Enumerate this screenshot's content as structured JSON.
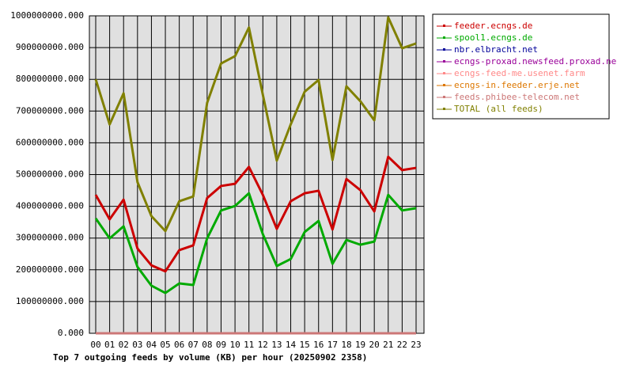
{
  "chart_data": {
    "type": "line",
    "title": "Top 7 outgoing feeds by volume (KB) per hour (20250902 2358)",
    "categories": [
      "00",
      "01",
      "02",
      "03",
      "04",
      "05",
      "06",
      "07",
      "08",
      "09",
      "10",
      "11",
      "12",
      "13",
      "14",
      "15",
      "16",
      "17",
      "18",
      "19",
      "20",
      "21",
      "22",
      "23"
    ],
    "ylim": [
      0,
      1000000000
    ],
    "yticks": [
      {
        "value": 0,
        "label": "0.000"
      },
      {
        "value": 100000000,
        "label": "100000000.000"
      },
      {
        "value": 200000000,
        "label": "200000000.000"
      },
      {
        "value": 300000000,
        "label": "300000000.000"
      },
      {
        "value": 400000000,
        "label": "400000000.000"
      },
      {
        "value": 500000000,
        "label": "500000000.000"
      },
      {
        "value": 600000000,
        "label": "600000000.000"
      },
      {
        "value": 700000000,
        "label": "700000000.000"
      },
      {
        "value": 800000000,
        "label": "800000000.000"
      },
      {
        "value": 900000000,
        "label": "900000000.000"
      },
      {
        "value": 1000000000,
        "label": "1000000000.000"
      }
    ],
    "grid": true,
    "legend": "right",
    "series": [
      {
        "name": "feeder.ecngs.de",
        "color": "#cc0000",
        "values": [
          436000000,
          359000000,
          421000000,
          267000000,
          214000000,
          195000000,
          262000000,
          277000000,
          426000000,
          464000000,
          471000000,
          524000000,
          436000000,
          329000000,
          416000000,
          441000000,
          449000000,
          327000000,
          486000000,
          451000000,
          384000000,
          556000000,
          514000000,
          521000000
        ]
      },
      {
        "name": "spool1.ecngs.de",
        "color": "#00aa00",
        "values": [
          362000000,
          299000000,
          337000000,
          209000000,
          150000000,
          127000000,
          157000000,
          152000000,
          299000000,
          387000000,
          401000000,
          441000000,
          312000000,
          212000000,
          234000000,
          319000000,
          354000000,
          219000000,
          294000000,
          279000000,
          289000000,
          436000000,
          387000000,
          394000000
        ]
      },
      {
        "name": "nbr.elbracht.net",
        "color": "#000099",
        "values": [
          0,
          0,
          0,
          0,
          0,
          0,
          0,
          0,
          0,
          0,
          0,
          0,
          0,
          0,
          0,
          0,
          0,
          0,
          0,
          0,
          0,
          0,
          0,
          0
        ]
      },
      {
        "name": "ecngs-proxad.newsfeed.proxad.net",
        "color": "#990099",
        "values": [
          0,
          0,
          0,
          0,
          0,
          0,
          0,
          0,
          0,
          0,
          0,
          0,
          0,
          0,
          0,
          0,
          0,
          0,
          0,
          0,
          0,
          0,
          0,
          0
        ]
      },
      {
        "name": "ecngs-feed-me.usenet.farm",
        "color": "#ff8888",
        "values": [
          0,
          0,
          0,
          0,
          0,
          0,
          0,
          0,
          0,
          0,
          0,
          0,
          0,
          0,
          0,
          0,
          0,
          0,
          0,
          0,
          0,
          0,
          0,
          0
        ]
      },
      {
        "name": "ecngs-in.feeder.erje.net",
        "color": "#dd7700",
        "values": [
          0,
          0,
          0,
          0,
          0,
          0,
          0,
          0,
          0,
          0,
          0,
          0,
          0,
          0,
          0,
          0,
          0,
          0,
          0,
          0,
          0,
          0,
          0,
          0
        ]
      },
      {
        "name": "feeds.phibee-telecom.net",
        "color": "#cc7777",
        "values": [
          0,
          0,
          0,
          0,
          0,
          0,
          0,
          0,
          0,
          0,
          0,
          0,
          0,
          0,
          0,
          0,
          0,
          0,
          0,
          0,
          0,
          0,
          0,
          0
        ]
      },
      {
        "name": "TOTAL (all feeds)",
        "color": "#808000",
        "values": [
          800000000,
          658000000,
          756000000,
          476000000,
          369000000,
          322000000,
          416000000,
          431000000,
          726000000,
          850000000,
          873000000,
          963000000,
          751000000,
          544000000,
          658000000,
          761000000,
          798000000,
          546000000,
          778000000,
          731000000,
          671000000,
          995000000,
          898000000,
          913000000
        ]
      }
    ]
  }
}
